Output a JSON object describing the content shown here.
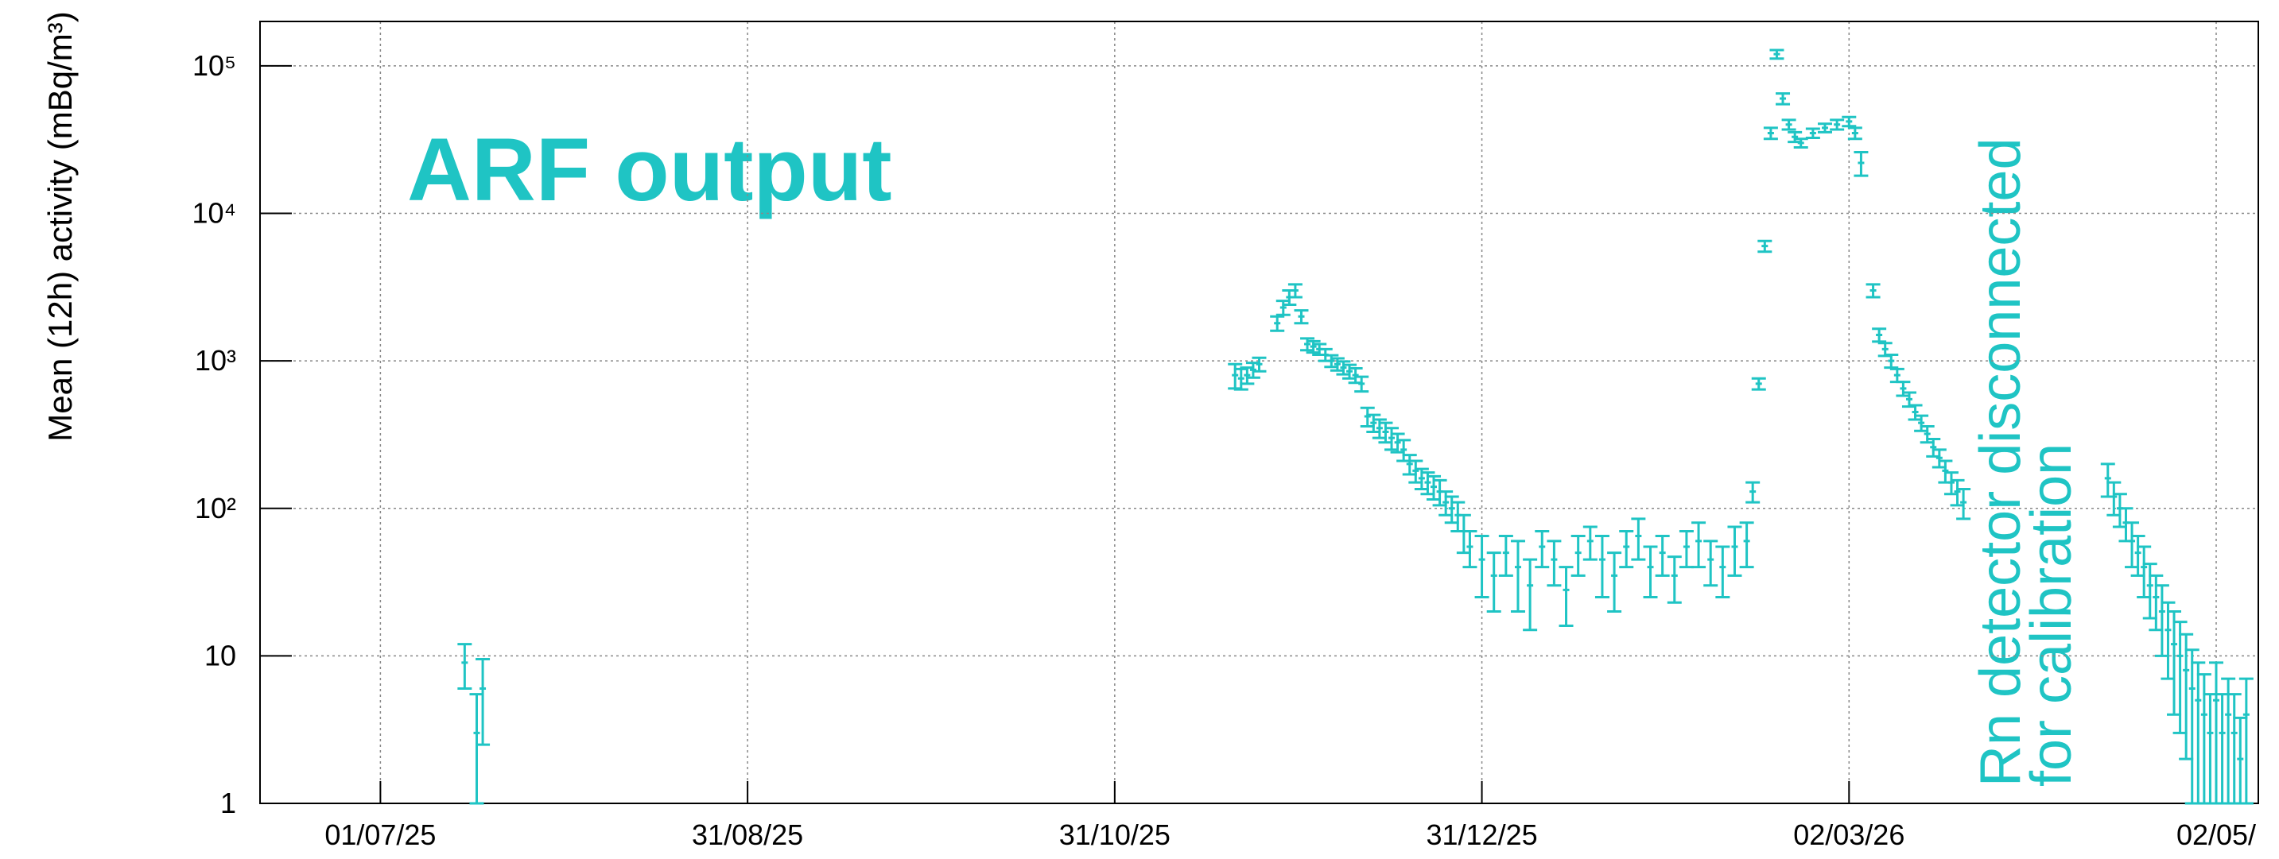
{
  "chart_data": {
    "type": "errorbar",
    "y_label": "Mean (12h) activity (mBq/m³)",
    "annotations": [
      "ARF output",
      "Rn detector disconnected",
      "for calibration"
    ],
    "color": "#1fc4c4",
    "log_y": true,
    "grid": true,
    "xlim": [
      "2025-06-11",
      "2026-05-09"
    ],
    "xticks": [
      {
        "value": "2025-07-01",
        "label": "01/07/25"
      },
      {
        "value": "2025-08-31",
        "label": "31/08/25"
      },
      {
        "value": "2025-10-31",
        "label": "31/10/25"
      },
      {
        "value": "2025-12-31",
        "label": "31/12/25"
      },
      {
        "value": "2026-03-02",
        "label": "02/03/26"
      },
      {
        "value": "2026-05-02",
        "label": "02/05/"
      }
    ],
    "ylim": [
      1,
      200000
    ],
    "yticks": [
      1,
      10,
      {
        "value": 100,
        "label": "10²"
      },
      {
        "value": 1000,
        "label": "10³"
      },
      {
        "value": 10000,
        "label": "10⁴"
      },
      {
        "value": 100000,
        "label": "10⁵"
      }
    ],
    "x": [
      "2025-07-15",
      "2025-07-17",
      "2025-07-18",
      "2025-11-20",
      "2025-11-21",
      "2025-11-22",
      "2025-11-23",
      "2025-11-24",
      "2025-11-27",
      "2025-11-28",
      "2025-11-29",
      "2025-11-30",
      "2025-12-01",
      "2025-12-02",
      "2025-12-03",
      "2025-12-04",
      "2025-12-05",
      "2025-12-06",
      "2025-12-07",
      "2025-12-08",
      "2025-12-09",
      "2025-12-10",
      "2025-12-11",
      "2025-12-12",
      "2025-12-13",
      "2025-12-14",
      "2025-12-15",
      "2025-12-16",
      "2025-12-17",
      "2025-12-18",
      "2025-12-19",
      "2025-12-20",
      "2025-12-21",
      "2025-12-22",
      "2025-12-23",
      "2025-12-24",
      "2025-12-25",
      "2025-12-26",
      "2025-12-27",
      "2025-12-28",
      "2025-12-29",
      "2025-12-31",
      "2026-01-02",
      "2026-01-04",
      "2026-01-06",
      "2026-01-08",
      "2026-01-10",
      "2026-01-12",
      "2026-01-14",
      "2026-01-16",
      "2026-01-18",
      "2026-01-20",
      "2026-01-22",
      "2026-01-24",
      "2026-01-26",
      "2026-01-28",
      "2026-01-30",
      "2026-02-01",
      "2026-02-03",
      "2026-02-05",
      "2026-02-07",
      "2026-02-09",
      "2026-02-11",
      "2026-02-13",
      "2026-02-14",
      "2026-02-15",
      "2026-02-16",
      "2026-02-17",
      "2026-02-18",
      "2026-02-19",
      "2026-02-20",
      "2026-02-21",
      "2026-02-22",
      "2026-02-24",
      "2026-02-26",
      "2026-02-28",
      "2026-03-02",
      "2026-03-03",
      "2026-03-04",
      "2026-03-06",
      "2026-03-07",
      "2026-03-08",
      "2026-03-09",
      "2026-03-10",
      "2026-03-11",
      "2026-03-12",
      "2026-03-13",
      "2026-03-14",
      "2026-03-15",
      "2026-03-16",
      "2026-03-17",
      "2026-03-18",
      "2026-03-19",
      "2026-03-20",
      "2026-03-21",
      "2026-04-14",
      "2026-04-15",
      "2026-04-16",
      "2026-04-17",
      "2026-04-18",
      "2026-04-19",
      "2026-04-20",
      "2026-04-21",
      "2026-04-22",
      "2026-04-23",
      "2026-04-24",
      "2026-04-25",
      "2026-04-26",
      "2026-04-27",
      "2026-04-28",
      "2026-04-29",
      "2026-04-30",
      "2026-05-01",
      "2026-05-02",
      "2026-05-03",
      "2026-05-04",
      "2026-05-05",
      "2026-05-06",
      "2026-05-07"
    ],
    "values": [
      9,
      3,
      6,
      800,
      760,
      800,
      870,
      950,
      1800,
      2300,
      2700,
      3000,
      2000,
      1300,
      1250,
      1200,
      1100,
      1000,
      950,
      900,
      850,
      800,
      700,
      420,
      380,
      350,
      330,
      300,
      280,
      250,
      200,
      180,
      160,
      150,
      140,
      130,
      110,
      100,
      90,
      70,
      55,
      45,
      35,
      50,
      40,
      30,
      55,
      45,
      28,
      50,
      60,
      45,
      35,
      55,
      65,
      40,
      50,
      35,
      55,
      60,
      45,
      40,
      55,
      60,
      130,
      700,
      6000,
      35000,
      120000,
      60000,
      40000,
      33000,
      30000,
      35000,
      38000,
      40000,
      42000,
      35000,
      22000,
      3000,
      1500,
      1200,
      1000,
      800,
      650,
      550,
      450,
      380,
      320,
      260,
      220,
      180,
      150,
      130,
      110,
      160,
      120,
      100,
      80,
      60,
      50,
      40,
      30,
      25,
      20,
      15,
      12,
      10,
      8,
      6,
      5,
      4,
      3,
      5,
      3,
      4,
      3,
      2,
      4
    ],
    "errors": [
      3,
      2.5,
      3.5,
      150,
      120,
      100,
      100,
      100,
      200,
      250,
      300,
      300,
      200,
      120,
      110,
      100,
      100,
      90,
      90,
      90,
      90,
      90,
      80,
      60,
      50,
      50,
      50,
      50,
      40,
      40,
      30,
      30,
      25,
      25,
      25,
      25,
      20,
      20,
      20,
      20,
      15,
      20,
      15,
      15,
      20,
      15,
      15,
      15,
      12,
      15,
      15,
      20,
      15,
      15,
      20,
      15,
      15,
      12,
      15,
      20,
      15,
      15,
      20,
      20,
      20,
      60,
      500,
      3000,
      8000,
      5000,
      3000,
      2500,
      2000,
      2500,
      2500,
      3000,
      3000,
      3000,
      4000,
      300,
      150,
      120,
      100,
      80,
      70,
      60,
      50,
      45,
      40,
      35,
      30,
      30,
      25,
      25,
      25,
      40,
      30,
      25,
      20,
      20,
      15,
      15,
      12,
      10,
      10,
      8,
      8,
      7,
      6,
      5,
      4,
      3.5,
      2.5,
      4,
      2.5,
      3,
      2.5,
      1.8,
      3
    ]
  }
}
